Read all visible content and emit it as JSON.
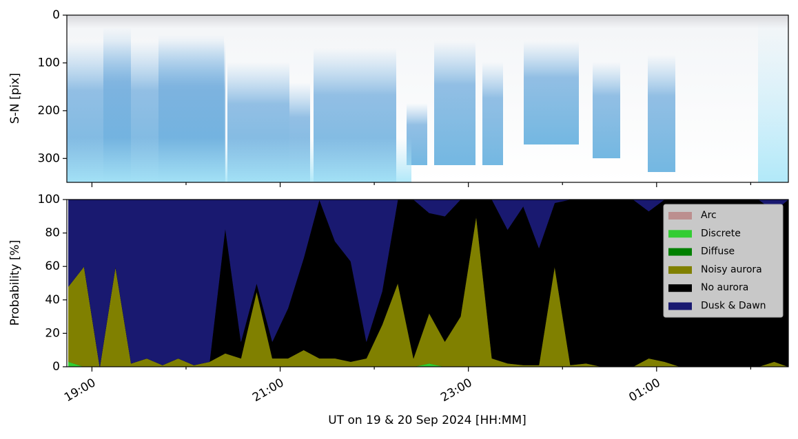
{
  "chart_data": [
    {
      "type": "image",
      "ylabel": "S-N [pix]",
      "ylim": [
        350,
        0
      ],
      "yticks": [
        0,
        100,
        200,
        300
      ]
    },
    {
      "type": "stacked_area",
      "xlabel": "UT on 19 & 20 Sep 2024 [HH:MM]",
      "ylabel": "Probability [%]",
      "x": [
        "18:45",
        "18:55",
        "19:05",
        "19:15",
        "19:25",
        "19:35",
        "19:45",
        "19:55",
        "20:05",
        "20:15",
        "20:25",
        "20:35",
        "20:45",
        "20:55",
        "21:05",
        "21:15",
        "21:25",
        "21:35",
        "21:45",
        "21:55",
        "22:05",
        "22:15",
        "22:25",
        "22:35",
        "22:45",
        "22:55",
        "23:05",
        "23:15",
        "23:25",
        "23:35",
        "23:45",
        "23:55",
        "00:05",
        "00:15",
        "00:25",
        "00:35",
        "00:45",
        "00:55",
        "01:05",
        "01:15",
        "01:25",
        "01:35",
        "01:45",
        "01:55",
        "02:05",
        "02:15",
        "02:24"
      ],
      "xlim": [
        "18:44",
        "02:24"
      ],
      "xticks": [
        "19:00",
        "21:00",
        "23:00",
        "01:00"
      ],
      "ylim": [
        0,
        100
      ],
      "yticks": [
        0,
        20,
        40,
        60,
        80,
        100
      ],
      "legend": "upper right",
      "series": [
        {
          "name": "Arc",
          "color": "#bc8f8f",
          "values": [
            0,
            0,
            0,
            0,
            0,
            0,
            0,
            0,
            0,
            0,
            0,
            0,
            0,
            0,
            0,
            0,
            0,
            0,
            0,
            0,
            0,
            0,
            0,
            0,
            0,
            0,
            0,
            0,
            0,
            0,
            0,
            0,
            0,
            0,
            0,
            0,
            0,
            0,
            0,
            0,
            0,
            0,
            0,
            0,
            0,
            0,
            0
          ]
        },
        {
          "name": "Discrete",
          "color": "#32cd32",
          "values": [
            3,
            0,
            0,
            0,
            0,
            0,
            0,
            0,
            0,
            0,
            0,
            0,
            0,
            0,
            0,
            0,
            0,
            0,
            0,
            0,
            0,
            0,
            0,
            2,
            0,
            0,
            0,
            0,
            0,
            0,
            0,
            0,
            0,
            0,
            0,
            0,
            0,
            0,
            0,
            0,
            0,
            0,
            0,
            0,
            0,
            0,
            0
          ]
        },
        {
          "name": "Diffuse",
          "color": "#008000",
          "values": [
            0,
            0,
            0,
            0,
            0,
            0,
            0,
            0,
            0,
            0,
            0,
            0,
            0,
            0,
            0,
            0,
            0,
            0,
            0,
            0,
            0,
            0,
            0,
            0,
            0,
            0,
            0,
            0,
            0,
            0,
            0,
            0,
            0,
            0,
            0,
            0,
            0,
            0,
            0,
            0,
            0,
            0,
            0,
            0,
            0,
            0,
            0
          ]
        },
        {
          "name": "Noisy aurora",
          "color": "#808000",
          "values": [
            45,
            60,
            0,
            60,
            2,
            5,
            1,
            5,
            1,
            3,
            8,
            5,
            45,
            5,
            5,
            10,
            5,
            5,
            3,
            5,
            25,
            50,
            5,
            30,
            15,
            30,
            90,
            5,
            2,
            1,
            1,
            60,
            1,
            2,
            0,
            0,
            0,
            5,
            3,
            0,
            0,
            0,
            0,
            0,
            0,
            3,
            0
          ]
        },
        {
          "name": "No aurora",
          "color": "#000000",
          "values": [
            0,
            0,
            0,
            0,
            0,
            0,
            0,
            0,
            0,
            0,
            75,
            10,
            5,
            10,
            30,
            55,
            95,
            70,
            60,
            10,
            20,
            50,
            95,
            60,
            75,
            70,
            10,
            95,
            80,
            95,
            70,
            38,
            99,
            98,
            100,
            100,
            100,
            88,
            97,
            100,
            100,
            100,
            100,
            100,
            100,
            90,
            100
          ]
        },
        {
          "name": "Dusk & Dawn",
          "color": "#191970",
          "values": [
            52,
            40,
            100,
            40,
            98,
            95,
            99,
            95,
            99,
            97,
            17,
            85,
            50,
            85,
            65,
            35,
            0,
            25,
            37,
            85,
            55,
            0,
            0,
            8,
            10,
            0,
            0,
            0,
            18,
            4,
            29,
            2,
            0,
            0,
            0,
            0,
            0,
            7,
            0,
            0,
            0,
            0,
            0,
            0,
            0,
            7,
            0
          ]
        }
      ]
    }
  ]
}
